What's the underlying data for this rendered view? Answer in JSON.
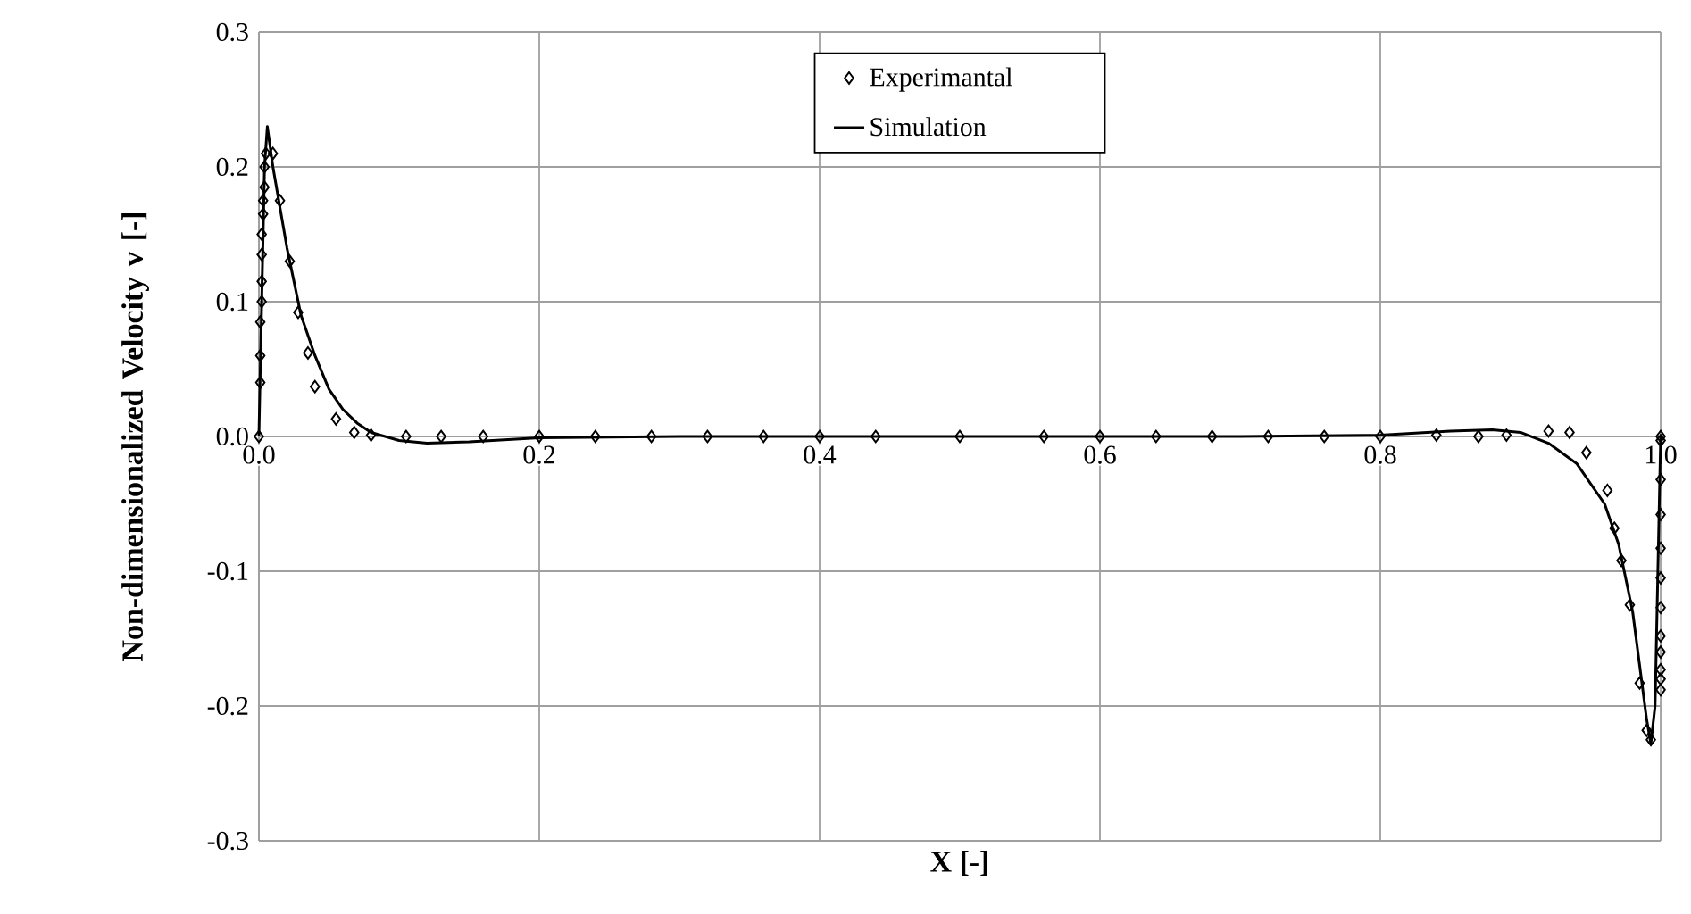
{
  "chart_data": {
    "type": "scatter",
    "xlabel": "X [-]",
    "ylabel": "Non-dimensionalized Velocity v [-]",
    "xlim": [
      0,
      1
    ],
    "ylim": [
      -0.3,
      0.3
    ],
    "xticks": [
      {
        "value": 0,
        "label": "0.0"
      },
      0.2,
      0.4,
      0.6,
      0.8,
      {
        "value": 1,
        "label": "1.0"
      }
    ],
    "yticks": [
      -0.3,
      -0.2,
      -0.1,
      {
        "value": 0,
        "label": "0.0"
      },
      0.1,
      0.2,
      0.3
    ],
    "grid": true,
    "legend": "top",
    "marker": "diamond",
    "series": [
      {
        "name": "Experimantal",
        "color": "#000000",
        "x": [
          0.0,
          0.001,
          0.001,
          0.001,
          0.002,
          0.002,
          0.002,
          0.002,
          0.003,
          0.003,
          0.004,
          0.004,
          0.005,
          0.01,
          0.015,
          0.022,
          0.028,
          0.035,
          0.04,
          0.055,
          0.068,
          0.08,
          0.105,
          0.13,
          0.16,
          0.2,
          0.24,
          0.28,
          0.32,
          0.36,
          0.4,
          0.44,
          0.5,
          0.56,
          0.6,
          0.64,
          0.68,
          0.72,
          0.76,
          0.8,
          0.84,
          0.87,
          0.89,
          0.92,
          0.935,
          0.947,
          0.962,
          0.967,
          0.972,
          0.978,
          0.985,
          0.99,
          0.993,
          1.0,
          1.0,
          1.0,
          1.0,
          1.0,
          1.0,
          1.0,
          1.0,
          1.0,
          1.0,
          1.0,
          1.0
        ],
        "values": [
          0.0,
          0.04,
          0.06,
          0.085,
          0.1,
          0.115,
          0.135,
          0.15,
          0.165,
          0.175,
          0.185,
          0.2,
          0.21,
          0.21,
          0.175,
          0.13,
          0.092,
          0.062,
          0.037,
          0.013,
          0.003,
          0.001,
          0.0,
          0.0,
          0.0,
          0.0,
          0.0,
          0.0,
          0.0,
          0.0,
          0.0,
          0.0,
          0.0,
          0.0,
          0.0,
          0.0,
          0.0,
          0.0,
          0.0,
          0.0,
          0.001,
          0.0,
          0.001,
          0.004,
          0.003,
          -0.012,
          -0.04,
          -0.068,
          -0.092,
          -0.125,
          -0.183,
          -0.218,
          -0.225,
          0.0,
          -0.003,
          -0.032,
          -0.058,
          -0.083,
          -0.105,
          -0.127,
          -0.148,
          -0.16,
          -0.173,
          -0.18,
          -0.188
        ]
      },
      {
        "name": "Simulation",
        "type": "line",
        "color": "#000000",
        "marker": "none",
        "line_style": "solid",
        "x": [
          0.0,
          0.002,
          0.004,
          0.006,
          0.01,
          0.02,
          0.03,
          0.04,
          0.05,
          0.06,
          0.07,
          0.08,
          0.1,
          0.12,
          0.15,
          0.2,
          0.3,
          0.5,
          0.7,
          0.8,
          0.85,
          0.88,
          0.9,
          0.92,
          0.94,
          0.96,
          0.97,
          0.98,
          0.985,
          0.99,
          0.993,
          0.996,
          0.998,
          1.0
        ],
        "values": [
          0.0,
          0.1,
          0.2,
          0.23,
          0.2,
          0.14,
          0.09,
          0.06,
          0.035,
          0.02,
          0.01,
          0.003,
          -0.003,
          -0.005,
          -0.004,
          -0.001,
          0.0,
          0.0,
          0.0,
          0.001,
          0.004,
          0.005,
          0.003,
          -0.005,
          -0.02,
          -0.05,
          -0.08,
          -0.13,
          -0.17,
          -0.21,
          -0.228,
          -0.2,
          -0.1,
          0.0
        ]
      }
    ]
  }
}
